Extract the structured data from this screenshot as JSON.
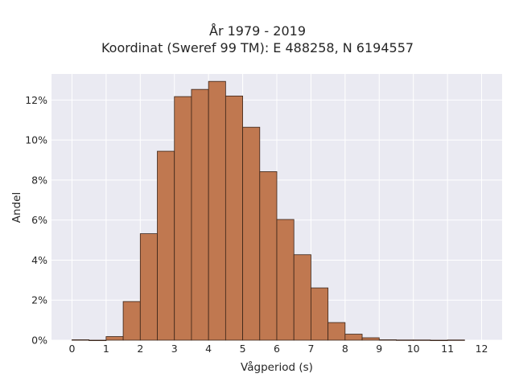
{
  "chart_data": {
    "type": "bar",
    "title_line1": "År 1979 - 2019",
    "title_line2": "Koordinat (Sweref 99 TM): E 488258, N 6194557",
    "xlabel": "Vågperiod (s)",
    "ylabel": "Andel",
    "xlim": [
      -0.6,
      12.6
    ],
    "ylim": [
      0,
      13.3
    ],
    "x_ticks": [
      0,
      1,
      2,
      3,
      4,
      5,
      6,
      7,
      8,
      9,
      10,
      11,
      12
    ],
    "y_ticks": [
      0,
      2,
      4,
      6,
      8,
      10,
      12
    ],
    "y_tick_labels": [
      "0%",
      "2%",
      "4%",
      "6%",
      "8%",
      "10%",
      "12%"
    ],
    "bin_width": 0.5,
    "bins": [
      {
        "left": 0.0,
        "value": 0.02
      },
      {
        "left": 0.5,
        "value": 0.0
      },
      {
        "left": 1.0,
        "value": 0.18
      },
      {
        "left": 1.5,
        "value": 1.93
      },
      {
        "left": 2.0,
        "value": 5.32
      },
      {
        "left": 2.5,
        "value": 9.44
      },
      {
        "left": 3.0,
        "value": 12.17
      },
      {
        "left": 3.5,
        "value": 12.53
      },
      {
        "left": 4.0,
        "value": 12.93
      },
      {
        "left": 4.5,
        "value": 12.2
      },
      {
        "left": 5.0,
        "value": 10.64
      },
      {
        "left": 5.5,
        "value": 8.42
      },
      {
        "left": 6.0,
        "value": 6.03
      },
      {
        "left": 6.5,
        "value": 4.27
      },
      {
        "left": 7.0,
        "value": 2.61
      },
      {
        "left": 7.5,
        "value": 0.88
      },
      {
        "left": 8.0,
        "value": 0.3
      },
      {
        "left": 8.5,
        "value": 0.12
      },
      {
        "left": 9.0,
        "value": 0.02
      },
      {
        "left": 9.5,
        "value": 0.01
      },
      {
        "left": 10.0,
        "value": 0.01
      },
      {
        "left": 10.5,
        "value": 0.0
      },
      {
        "left": 11.0,
        "value": 0.01
      }
    ],
    "bar_color": "#c07850",
    "bar_edge_color": "#3a2418",
    "background_color": "#eaeaf2",
    "grid": true
  }
}
